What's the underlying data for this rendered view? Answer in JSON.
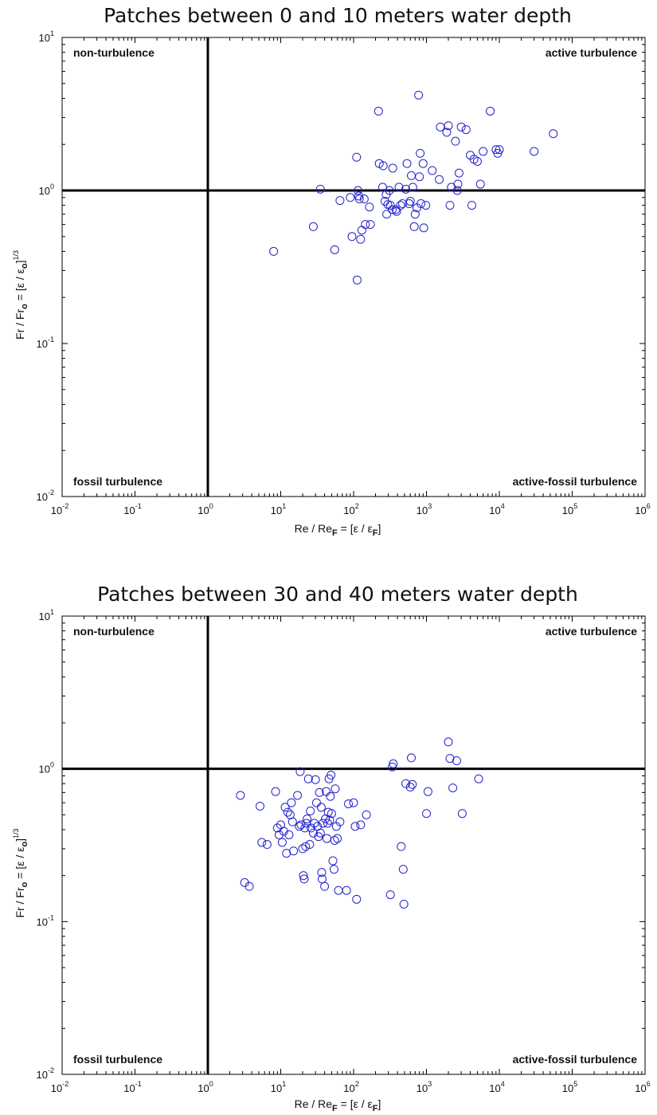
{
  "chart_data": [
    {
      "type": "scatter",
      "title": "Patches between 0 and 10 meters water depth",
      "xlabel": {
        "main": "Re / Re",
        "sub": "F",
        "rest": " = [ε / ε",
        "sub2": "F",
        "end": "]"
      },
      "ylabel": {
        "main": "Fr / Fr",
        "sub": "o",
        "rest": " = [ε / ε",
        "sub2": "o",
        "end": "]",
        "sup": "1/3"
      },
      "xscale": "log",
      "yscale": "log",
      "xlim": [
        0.01,
        1000000
      ],
      "ylim": [
        0.01,
        10
      ],
      "xticks": {
        "base": [
          "10",
          "10",
          "10",
          "10",
          "10",
          "10",
          "10",
          "10",
          "10"
        ],
        "exp": [
          "-2",
          "-1",
          "0",
          "1",
          "2",
          "3",
          "4",
          "5",
          "6"
        ]
      },
      "yticks": {
        "base": [
          "10",
          "10",
          "10",
          "10"
        ],
        "exp": [
          "-2",
          "-1",
          "0",
          "1"
        ]
      },
      "reference_lines": {
        "x": 1,
        "y": 1
      },
      "quadrant_labels": {
        "top_left": "non-turbulence",
        "top_right": "active turbulence",
        "bottom_left": "fossil turbulence",
        "bottom_right": "active-fossil turbulence"
      },
      "marker": "open circle",
      "color": "#2222cc",
      "points": [
        [
          8,
          0.4
        ],
        [
          28,
          0.58
        ],
        [
          35,
          1.02
        ],
        [
          55,
          0.41
        ],
        [
          65,
          0.86
        ],
        [
          90,
          0.9
        ],
        [
          95,
          0.5
        ],
        [
          110,
          1.65
        ],
        [
          112,
          0.26
        ],
        [
          115,
          1.0
        ],
        [
          118,
          0.92
        ],
        [
          120,
          0.88
        ],
        [
          125,
          0.48
        ],
        [
          130,
          0.55
        ],
        [
          140,
          0.88
        ],
        [
          145,
          0.6
        ],
        [
          165,
          0.78
        ],
        [
          170,
          0.6
        ],
        [
          220,
          3.3
        ],
        [
          225,
          1.5
        ],
        [
          250,
          1.05
        ],
        [
          255,
          1.45
        ],
        [
          270,
          0.85
        ],
        [
          280,
          0.94
        ],
        [
          285,
          0.7
        ],
        [
          295,
          0.81
        ],
        [
          310,
          1.0
        ],
        [
          320,
          0.8
        ],
        [
          340,
          0.75
        ],
        [
          345,
          1.4
        ],
        [
          380,
          0.75
        ],
        [
          390,
          0.73
        ],
        [
          420,
          1.05
        ],
        [
          440,
          0.8
        ],
        [
          470,
          0.82
        ],
        [
          520,
          1.02
        ],
        [
          540,
          1.5
        ],
        [
          580,
          0.82
        ],
        [
          600,
          0.85
        ],
        [
          620,
          1.25
        ],
        [
          650,
          1.05
        ],
        [
          680,
          0.58
        ],
        [
          700,
          0.7
        ],
        [
          740,
          0.77
        ],
        [
          780,
          4.2
        ],
        [
          800,
          1.23
        ],
        [
          820,
          1.75
        ],
        [
          840,
          0.82
        ],
        [
          900,
          1.5
        ],
        [
          920,
          0.57
        ],
        [
          980,
          0.8
        ],
        [
          1200,
          1.35
        ],
        [
          1500,
          1.18
        ],
        [
          1550,
          2.6
        ],
        [
          1900,
          2.4
        ],
        [
          2000,
          2.65
        ],
        [
          2100,
          0.8
        ],
        [
          2200,
          1.05
        ],
        [
          2500,
          2.1
        ],
        [
          2650,
          1.0
        ],
        [
          2700,
          1.1
        ],
        [
          2800,
          1.3
        ],
        [
          3000,
          2.6
        ],
        [
          3500,
          2.5
        ],
        [
          4000,
          1.7
        ],
        [
          4200,
          0.8
        ],
        [
          4500,
          1.6
        ],
        [
          5000,
          1.55
        ],
        [
          5500,
          1.1
        ],
        [
          6000,
          1.8
        ],
        [
          7500,
          3.3
        ],
        [
          9000,
          1.85
        ],
        [
          9500,
          1.75
        ],
        [
          10000,
          1.85
        ],
        [
          30000,
          1.8
        ],
        [
          55000,
          2.35
        ]
      ]
    },
    {
      "type": "scatter",
      "title": "Patches between 30 and 40 meters water depth",
      "xlabel": {
        "main": "Re / Re",
        "sub": "F",
        "rest": " = [ε / ε",
        "sub2": "F",
        "end": "]"
      },
      "ylabel": {
        "main": "Fr / Fr",
        "sub": "o",
        "rest": " = [ε / ε",
        "sub2": "o",
        "end": "]",
        "sup": "1/3"
      },
      "xscale": "log",
      "yscale": "log",
      "xlim": [
        0.01,
        1000000
      ],
      "ylim": [
        0.01,
        10
      ],
      "xticks": {
        "base": [
          "10",
          "10",
          "10",
          "10",
          "10",
          "10",
          "10",
          "10",
          "10"
        ],
        "exp": [
          "-2",
          "-1",
          "0",
          "1",
          "2",
          "3",
          "4",
          "5",
          "6"
        ]
      },
      "yticks": {
        "base": [
          "10",
          "10",
          "10",
          "10"
        ],
        "exp": [
          "-2",
          "-1",
          "0",
          "1"
        ]
      },
      "reference_lines": {
        "x": 1,
        "y": 1
      },
      "quadrant_labels": {
        "top_left": "non-turbulence",
        "top_right": "active turbulence",
        "bottom_left": "fossil turbulence",
        "bottom_right": "active-fossil turbulence"
      },
      "marker": "open circle",
      "color": "#2222cc",
      "points": [
        [
          2.8,
          0.67
        ],
        [
          3.2,
          0.18
        ],
        [
          3.7,
          0.17
        ],
        [
          5.2,
          0.57
        ],
        [
          5.5,
          0.33
        ],
        [
          6.5,
          0.32
        ],
        [
          8.5,
          0.71
        ],
        [
          9,
          0.41
        ],
        [
          9.5,
          0.37
        ],
        [
          10,
          0.43
        ],
        [
          10.5,
          0.33
        ],
        [
          11,
          0.39
        ],
        [
          11.5,
          0.56
        ],
        [
          12,
          0.28
        ],
        [
          12.5,
          0.52
        ],
        [
          13,
          0.37
        ],
        [
          13.5,
          0.5
        ],
        [
          14,
          0.6
        ],
        [
          14.5,
          0.45
        ],
        [
          15,
          0.29
        ],
        [
          17,
          0.67
        ],
        [
          18,
          0.42
        ],
        [
          18.5,
          0.96
        ],
        [
          19,
          0.43
        ],
        [
          20,
          0.3
        ],
        [
          20.5,
          0.2
        ],
        [
          21,
          0.19
        ],
        [
          21.5,
          0.41
        ],
        [
          22,
          0.31
        ],
        [
          22.5,
          0.44
        ],
        [
          23,
          0.47
        ],
        [
          24,
          0.86
        ],
        [
          25,
          0.32
        ],
        [
          25.5,
          0.53
        ],
        [
          26,
          0.41
        ],
        [
          28,
          0.38
        ],
        [
          29,
          0.44
        ],
        [
          30,
          0.85
        ],
        [
          31,
          0.6
        ],
        [
          32,
          0.42
        ],
        [
          33,
          0.36
        ],
        [
          34,
          0.7
        ],
        [
          35,
          0.38
        ],
        [
          36,
          0.56
        ],
        [
          36.5,
          0.21
        ],
        [
          37,
          0.19
        ],
        [
          38,
          0.44
        ],
        [
          40,
          0.17
        ],
        [
          41,
          0.47
        ],
        [
          42,
          0.71
        ],
        [
          43,
          0.35
        ],
        [
          44,
          0.44
        ],
        [
          45,
          0.52
        ],
        [
          46,
          0.86
        ],
        [
          47,
          0.46
        ],
        [
          48,
          0.66
        ],
        [
          49,
          0.91
        ],
        [
          50,
          0.51
        ],
        [
          52,
          0.25
        ],
        [
          54,
          0.22
        ],
        [
          55,
          0.34
        ],
        [
          56,
          0.74
        ],
        [
          58,
          0.42
        ],
        [
          60,
          0.35
        ],
        [
          62,
          0.16
        ],
        [
          65,
          0.45
        ],
        [
          80,
          0.16
        ],
        [
          85,
          0.59
        ],
        [
          100,
          0.6
        ],
        [
          105,
          0.42
        ],
        [
          110,
          0.14
        ],
        [
          125,
          0.43
        ],
        [
          150,
          0.5
        ],
        [
          320,
          0.15
        ],
        [
          340,
          1.03
        ],
        [
          350,
          1.08
        ],
        [
          450,
          0.31
        ],
        [
          480,
          0.22
        ],
        [
          490,
          0.13
        ],
        [
          520,
          0.8
        ],
        [
          600,
          0.76
        ],
        [
          620,
          1.18
        ],
        [
          640,
          0.79
        ],
        [
          1000,
          0.51
        ],
        [
          1050,
          0.71
        ],
        [
          2000,
          1.5
        ],
        [
          2100,
          1.17
        ],
        [
          2300,
          0.75
        ],
        [
          2600,
          1.13
        ],
        [
          3100,
          0.51
        ],
        [
          5200,
          0.86
        ]
      ]
    }
  ]
}
